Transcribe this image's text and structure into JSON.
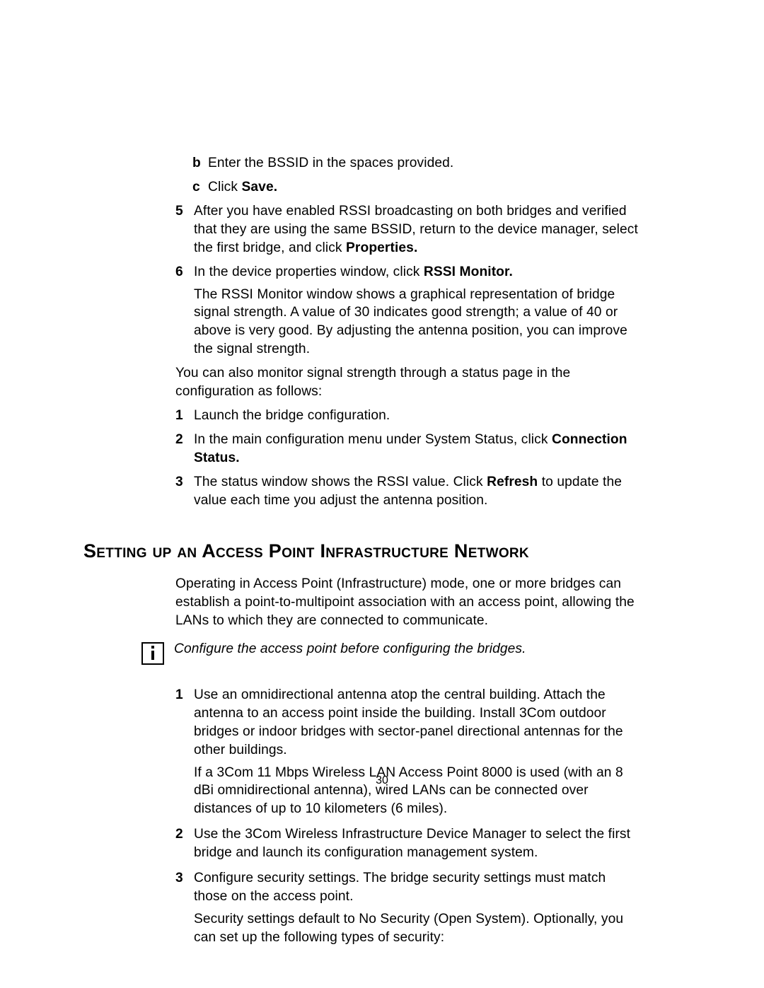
{
  "section1": {
    "sub_b": {
      "marker": "b",
      "text": "Enter the BSSID in the spaces provided."
    },
    "sub_c": {
      "marker": "c",
      "prefix": "Click ",
      "bold": "Save."
    },
    "item5": {
      "marker": "5",
      "text_before": "After you have enabled RSSI broadcasting on both bridges and verified that they are using the same BSSID, return to the device manager, select the first bridge, and click ",
      "bold": "Properties.",
      "text_after": ""
    },
    "item6": {
      "marker": "6",
      "line1_before": "In the device properties window, click ",
      "line1_bold": "RSSI Monitor.",
      "line2": "The RSSI Monitor window shows a graphical representation of bridge signal strength. A value of 30 indicates good strength; a value of 40 or above is very good. By adjusting the antenna position, you can improve the signal strength."
    },
    "para_after": "You can also monitor signal strength through a status page in the configuration as follows:",
    "status_item1": {
      "marker": "1",
      "text": "Launch the bridge configuration."
    },
    "status_item2": {
      "marker": "2",
      "text_before": "In the main configuration menu under System Status, click ",
      "bold": "Connection Status."
    },
    "status_item3": {
      "marker": "3",
      "text_before": "The status window shows the RSSI value. Click ",
      "bold": "Refresh ",
      "text_after": "to update the value each time you adjust the antenna position."
    }
  },
  "heading": "Setting up an Access Point Infrastructure Network",
  "section2": {
    "intro": "Operating in Access Point (Infrastructure) mode, one or more bridges can establish a point-to-multipoint association with an access point, allowing the LANs to which they are connected to communicate.",
    "note": "Configure the access point before configuring the bridges.",
    "item1": {
      "marker": "1",
      "p1": "Use an omnidirectional antenna atop the central building. Attach the antenna to an access point inside the building. Install 3Com outdoor bridges or indoor bridges with sector-panel directional antennas for the other buildings.",
      "p2": "If a 3Com 11 Mbps Wireless LAN Access Point 8000 is used (with an 8 dBi omnidirectional antenna), wired LANs can be connected over distances of up to 10 kilometers (6 miles)."
    },
    "item2": {
      "marker": "2",
      "p1": "Use the 3Com Wireless Infrastructure Device Manager to select the first bridge and launch its configuration management system."
    },
    "item3": {
      "marker": "3",
      "p1": "Configure security settings. The bridge security settings must match those on the access point.",
      "p2": "Security settings default to No Security (Open System). Optionally, you can set up the following types of security:"
    }
  },
  "page_number": "30",
  "colors": {
    "text": "#000000",
    "background": "#ffffff"
  }
}
